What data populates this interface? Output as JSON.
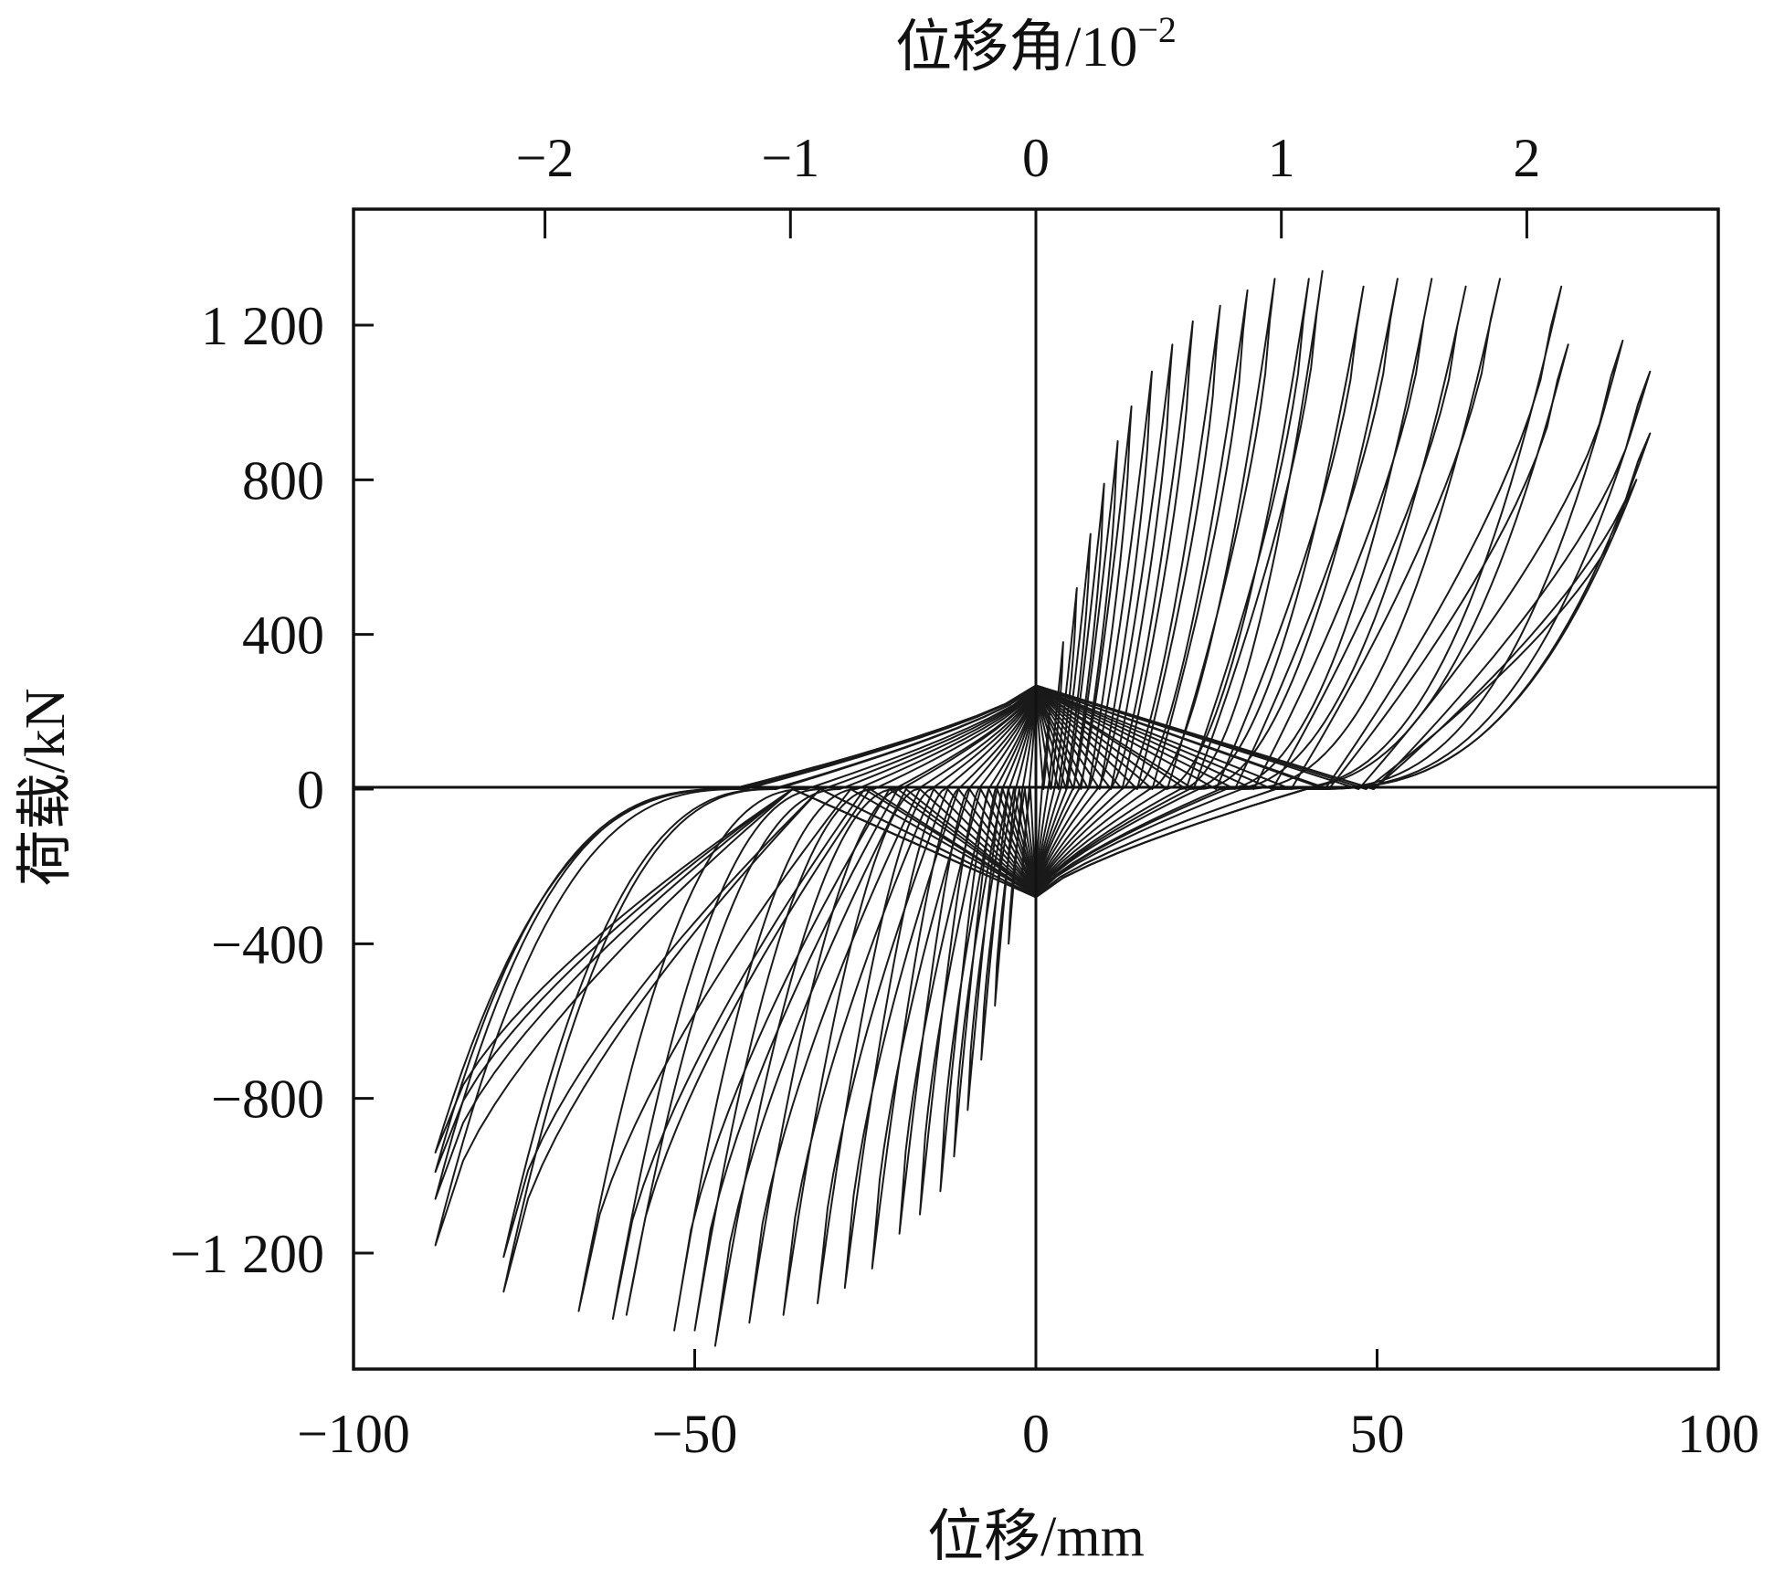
{
  "chart_data": {
    "type": "line",
    "title": "",
    "xlabel": "位移/mm",
    "ylabel": "荷载/kN",
    "x2label": "位移角/10",
    "x2label_exponent": "−2",
    "xlim": [
      -100,
      100
    ],
    "ylim": [
      -1500,
      1500
    ],
    "x2lim": [
      -2.78,
      2.78
    ],
    "grid": false,
    "zero_lines": true,
    "x_ticks": [
      {
        "value": -100,
        "label": "−100"
      },
      {
        "value": -50,
        "label": "−50"
      },
      {
        "value": 0,
        "label": "0"
      },
      {
        "value": 50,
        "label": "50"
      },
      {
        "value": 100,
        "label": "100"
      }
    ],
    "y_ticks": [
      {
        "value": 1200,
        "label": "1 200"
      },
      {
        "value": 800,
        "label": "800"
      },
      {
        "value": 400,
        "label": "400"
      },
      {
        "value": 0,
        "label": "0"
      },
      {
        "value": -400,
        "label": "−400"
      },
      {
        "value": -800,
        "label": "−800"
      },
      {
        "value": -1200,
        "label": "−1 200"
      }
    ],
    "x2_ticks": [
      {
        "value": -2,
        "label": "−2"
      },
      {
        "value": -1,
        "label": "−1"
      },
      {
        "value": 0,
        "label": "0"
      },
      {
        "value": 1,
        "label": "1"
      },
      {
        "value": 2,
        "label": "2"
      }
    ],
    "series": [
      {
        "cycles": [
          {
            "amp_pos": 2,
            "peak_pos": 200,
            "amp_neg": 2,
            "peak_neg": 220
          },
          {
            "amp_pos": 4,
            "peak_pos": 380,
            "amp_neg": 4,
            "peak_neg": 400
          },
          {
            "amp_pos": 6,
            "peak_pos": 520,
            "amp_neg": 6,
            "peak_neg": 560
          },
          {
            "amp_pos": 8,
            "peak_pos": 660,
            "amp_neg": 8,
            "peak_neg": 700
          },
          {
            "amp_pos": 10,
            "peak_pos": 790,
            "amp_neg": 10,
            "peak_neg": 830
          },
          {
            "amp_pos": 12,
            "peak_pos": 900,
            "amp_neg": 12,
            "peak_neg": 950
          },
          {
            "amp_pos": 14,
            "peak_pos": 990,
            "amp_neg": 14,
            "peak_neg": 1040
          },
          {
            "amp_pos": 17,
            "peak_pos": 1080,
            "amp_neg": 17,
            "peak_neg": 1100
          },
          {
            "amp_pos": 20,
            "peak_pos": 1150,
            "amp_neg": 20,
            "peak_neg": 1150
          },
          {
            "amp_pos": 23,
            "peak_pos": 1210,
            "amp_neg": 24,
            "peak_neg": 1240
          },
          {
            "amp_pos": 27,
            "peak_pos": 1250,
            "amp_neg": 28,
            "peak_neg": 1290
          },
          {
            "amp_pos": 31,
            "peak_pos": 1290,
            "amp_neg": 32,
            "peak_neg": 1330
          },
          {
            "amp_pos": 35,
            "peak_pos": 1320,
            "amp_neg": 37,
            "peak_neg": 1360
          },
          {
            "amp_pos": 40,
            "peak_pos": 1320,
            "amp_neg": 42,
            "peak_neg": 1380
          },
          {
            "amp_pos": 42,
            "peak_pos": 1340,
            "amp_neg": 47,
            "peak_neg": 1440
          },
          {
            "amp_pos": 48,
            "peak_pos": 1300,
            "amp_neg": 50,
            "peak_neg": 1400
          },
          {
            "amp_pos": 53,
            "peak_pos": 1320,
            "amp_neg": 53,
            "peak_neg": 1400
          },
          {
            "amp_pos": 58,
            "peak_pos": 1320,
            "amp_neg": 60,
            "peak_neg": 1360
          },
          {
            "amp_pos": 63,
            "peak_pos": 1300,
            "amp_neg": 62,
            "peak_neg": 1370
          },
          {
            "amp_pos": 68,
            "peak_pos": 1320,
            "amp_neg": 67,
            "peak_neg": 1350
          },
          {
            "amp_pos": 77,
            "peak_pos": 1300,
            "amp_neg": 78,
            "peak_neg": 1300
          },
          {
            "amp_pos": 78,
            "peak_pos": 1150,
            "amp_neg": 78,
            "peak_neg": 1210
          },
          {
            "amp_pos": 86,
            "peak_pos": 1160,
            "amp_neg": 88,
            "peak_neg": 1180
          },
          {
            "amp_pos": 90,
            "peak_pos": 1080,
            "amp_neg": 88,
            "peak_neg": 1060
          },
          {
            "amp_pos": 90,
            "peak_pos": 920,
            "amp_neg": 88,
            "peak_neg": 990
          },
          {
            "amp_pos": 88,
            "peak_pos": 800,
            "amp_neg": 88,
            "peak_neg": 940
          }
        ]
      }
    ]
  }
}
